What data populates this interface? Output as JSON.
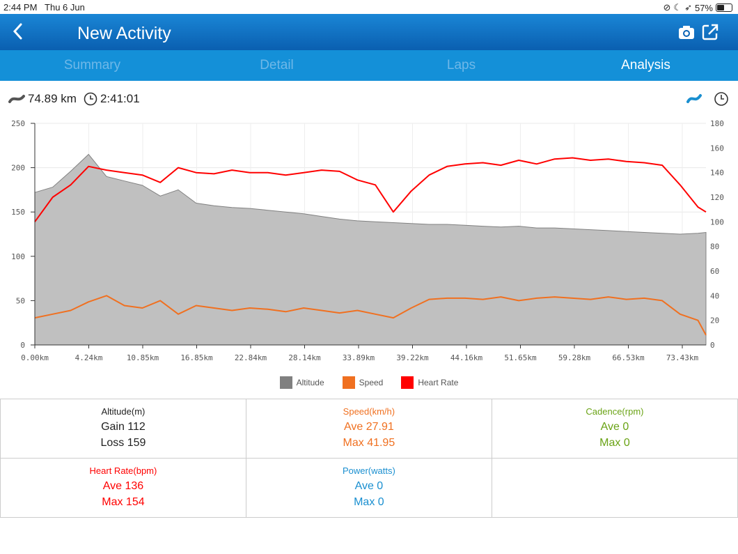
{
  "status_bar": {
    "time": "2:44 PM",
    "date": "Thu 6 Jun",
    "battery": "57%",
    "battery_level": 0.57
  },
  "nav": {
    "title": "New Activity",
    "back_icon": "chevron-left-icon",
    "camera_icon": "camera-icon",
    "share_icon": "share-icon"
  },
  "tabs": [
    {
      "label": "Summary"
    },
    {
      "label": "Detail"
    },
    {
      "label": "Laps"
    },
    {
      "label": "Analysis"
    }
  ],
  "active_tab": "Analysis",
  "summary": {
    "distance": "74.89 km",
    "duration": "2:41:01"
  },
  "colors": {
    "altitude": "#808080",
    "speed": "#f07020",
    "heart_rate": "#ff0000",
    "cadence": "#6aa315",
    "power": "#1a8fd0"
  },
  "chart_data": {
    "type": "line",
    "x_tick_labels": [
      "0.00km",
      "4.24km",
      "10.85km",
      "16.85km",
      "22.84km",
      "28.14km",
      "33.89km",
      "39.22km",
      "44.16km",
      "51.65km",
      "59.28km",
      "66.53km",
      "73.43km"
    ],
    "x": [
      0,
      2,
      4,
      6,
      8,
      10,
      12,
      14,
      16,
      18,
      20,
      22,
      24,
      26,
      28,
      30,
      32,
      34,
      36,
      38,
      40,
      42,
      44,
      46,
      48,
      50,
      52,
      54,
      56,
      58,
      60,
      62,
      64,
      66,
      68,
      70,
      72,
      74,
      74.89
    ],
    "xlim": [
      0,
      74.89
    ],
    "y_left_ticks": [
      "0",
      "50",
      "100",
      "150",
      "200",
      "250"
    ],
    "ylim_left": [
      0,
      250
    ],
    "y_right_ticks": [
      "0",
      "20",
      "40",
      "60",
      "80",
      "100",
      "120",
      "140",
      "160",
      "180"
    ],
    "ylim_right": [
      0,
      180
    ],
    "grid": true,
    "legend_position": "bottom",
    "series": [
      {
        "name": "Altitude",
        "axis": "left",
        "type": "area",
        "values": [
          172,
          178,
          196,
          215,
          190,
          185,
          180,
          168,
          175,
          160,
          157,
          155,
          154,
          152,
          150,
          148,
          145,
          142,
          140,
          139,
          138,
          137,
          136,
          136,
          135,
          134,
          133,
          134,
          132,
          132,
          131,
          130,
          129,
          128,
          127,
          126,
          125,
          126,
          127
        ]
      },
      {
        "name": "Speed",
        "axis": "right",
        "type": "line",
        "values": [
          22,
          25,
          28,
          35,
          40,
          32,
          30,
          36,
          25,
          32,
          30,
          28,
          30,
          29,
          27,
          30,
          28,
          26,
          28,
          25,
          22,
          30,
          37,
          38,
          38,
          37,
          39,
          36,
          38,
          39,
          38,
          37,
          39,
          37,
          38,
          36,
          25,
          20,
          8
        ]
      },
      {
        "name": "Heart Rate",
        "axis": "right",
        "type": "line",
        "values": [
          100,
          120,
          130,
          145,
          142,
          140,
          138,
          132,
          144,
          140,
          139,
          142,
          140,
          140,
          138,
          140,
          142,
          141,
          134,
          130,
          108,
          125,
          138,
          145,
          147,
          148,
          146,
          150,
          147,
          151,
          152,
          150,
          151,
          149,
          148,
          146,
          130,
          112,
          108
        ]
      }
    ]
  },
  "stats": [
    {
      "title": "Altitude(m)",
      "line1": "Gain 112",
      "line2": "Loss 159",
      "color": "#222222"
    },
    {
      "title": "Speed(km/h)",
      "line1": "Ave 27.91",
      "line2": "Max 41.95",
      "color": "#f07020"
    },
    {
      "title": "Cadence(rpm)",
      "line1": "Ave 0",
      "line2": "Max 0",
      "color": "#6aa315"
    },
    {
      "title": "Heart Rate(bpm)",
      "line1": "Ave 136",
      "line2": "Max 154",
      "color": "#ff0000"
    },
    {
      "title": "Power(watts)",
      "line1": "Ave 0",
      "line2": "Max 0",
      "color": "#1a8fd0"
    }
  ]
}
